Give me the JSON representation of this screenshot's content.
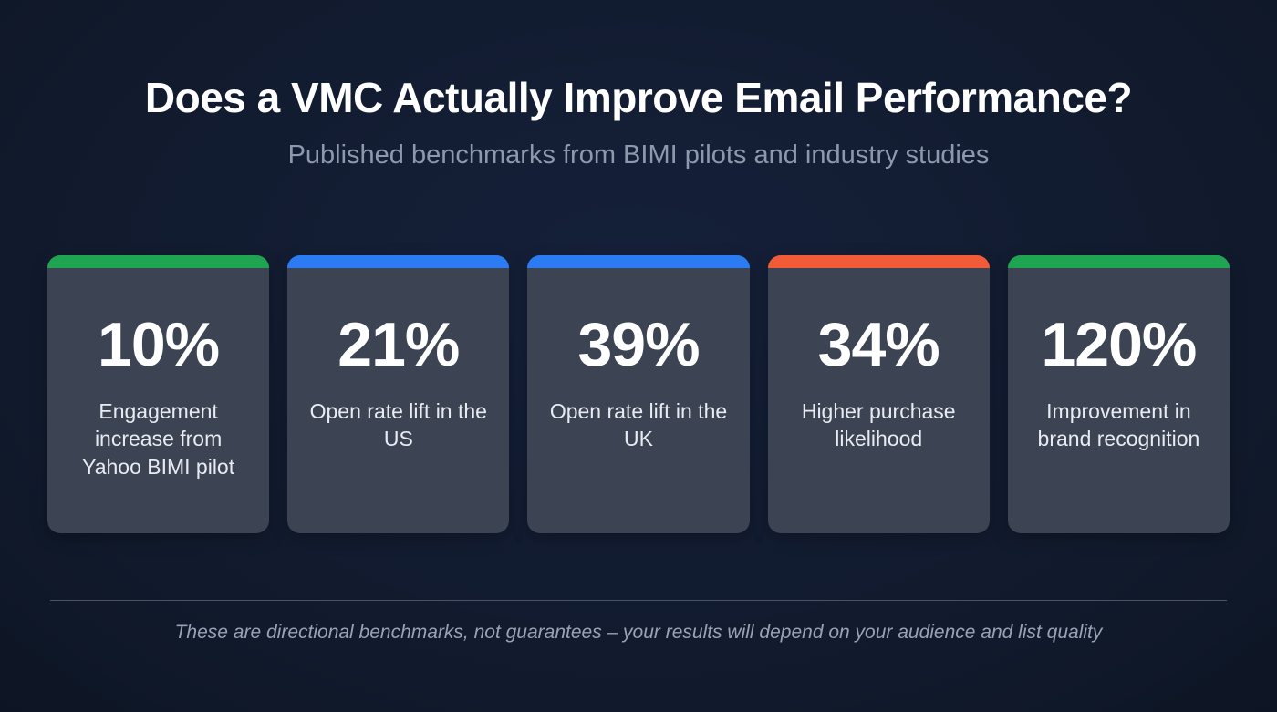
{
  "page": {
    "title": "Does a VMC Actually Improve Email Performance?",
    "subtitle": "Published benchmarks from BIMI pilots and industry studies",
    "footnote": "These are directional benchmarks, not guarantees – your results will depend on your audience and list quality"
  },
  "colors": {
    "background": "#121a2d",
    "card": "#3c4454",
    "green": "#1fa551",
    "blue": "#2b7bf2",
    "orange": "#f15b38",
    "title": "#ffffff",
    "subtitle": "#8d98ad",
    "footnote": "#9aa3b6"
  },
  "cards": [
    {
      "value": "10%",
      "label": "Engagement increase from Yahoo BIMI pilot",
      "accent": "#1fa551"
    },
    {
      "value": "21%",
      "label": "Open rate lift in the US",
      "accent": "#2b7bf2"
    },
    {
      "value": "39%",
      "label": "Open rate lift in the UK",
      "accent": "#2b7bf2"
    },
    {
      "value": "34%",
      "label": "Higher purchase likelihood",
      "accent": "#f15b38"
    },
    {
      "value": "120%",
      "label": "Improvement in brand recognition",
      "accent": "#1fa551"
    }
  ],
  "chart_data": {
    "type": "table",
    "title": "Does a VMC Actually Improve Email Performance?",
    "subtitle": "Published benchmarks from BIMI pilots and industry studies",
    "categories": [
      "Engagement increase from Yahoo BIMI pilot",
      "Open rate lift in the US",
      "Open rate lift in the UK",
      "Higher purchase likelihood",
      "Improvement in brand recognition"
    ],
    "values": [
      10,
      21,
      39,
      34,
      120
    ],
    "unit": "%",
    "annotations": [
      "These are directional benchmarks, not guarantees – your results will depend on your audience and list quality"
    ],
    "legend_position": "none",
    "grid": false
  }
}
